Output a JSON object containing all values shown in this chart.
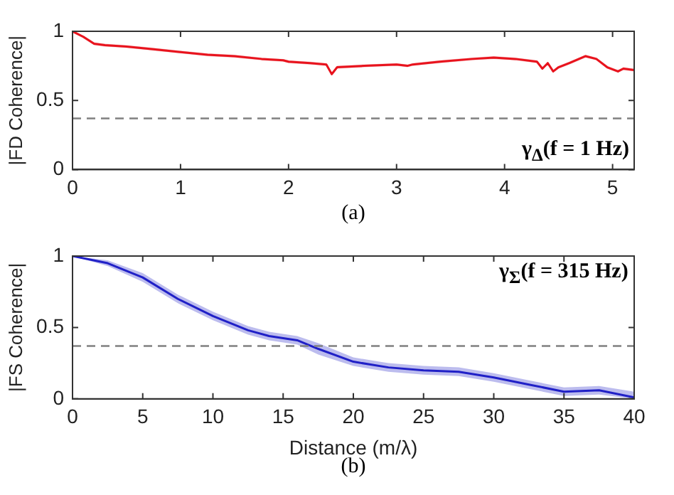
{
  "chart_data": [
    {
      "type": "line",
      "ylabel": "|FD Coherence|",
      "annotations": [
        "γ$_{Δ}$(f = 1 Hz)",
        "(a)"
      ],
      "xlim": [
        0,
        5.2
      ],
      "xticks": [
        0,
        1,
        2,
        3,
        4,
        5
      ],
      "ylim": [
        0,
        1
      ],
      "yticks": [
        0,
        0.5,
        1
      ],
      "grid": false,
      "legend": false,
      "marker": "none",
      "x": [
        0,
        0.1,
        0.2,
        0.3,
        0.5,
        0.75,
        1,
        1.25,
        1.5,
        1.75,
        1.95,
        2.0,
        2.2,
        2.35,
        2.4,
        2.45,
        2.7,
        3.0,
        3.1,
        3.15,
        3.4,
        3.7,
        3.9,
        4.1,
        4.3,
        4.35,
        4.4,
        4.45,
        4.5,
        4.6,
        4.75,
        4.85,
        4.95,
        5.05,
        5.1,
        5.2
      ],
      "series": [
        {
          "color": "#e8141e",
          "values": [
            1.0,
            0.96,
            0.91,
            0.9,
            0.89,
            0.87,
            0.85,
            0.83,
            0.82,
            0.8,
            0.79,
            0.78,
            0.77,
            0.76,
            0.69,
            0.74,
            0.75,
            0.76,
            0.75,
            0.76,
            0.78,
            0.8,
            0.81,
            0.8,
            0.78,
            0.73,
            0.77,
            0.71,
            0.74,
            0.77,
            0.82,
            0.8,
            0.74,
            0.71,
            0.73,
            0.72
          ],
          "lower": [
            0.99,
            0.95,
            0.9,
            0.89,
            0.88,
            0.86,
            0.84,
            0.82,
            0.81,
            0.79,
            0.78,
            0.77,
            0.76,
            0.75,
            0.68,
            0.73,
            0.74,
            0.75,
            0.74,
            0.75,
            0.77,
            0.79,
            0.8,
            0.79,
            0.77,
            0.72,
            0.76,
            0.7,
            0.73,
            0.76,
            0.81,
            0.79,
            0.73,
            0.7,
            0.72,
            0.71
          ],
          "upper": [
            1.0,
            0.97,
            0.92,
            0.91,
            0.9,
            0.88,
            0.86,
            0.84,
            0.83,
            0.81,
            0.8,
            0.79,
            0.78,
            0.77,
            0.7,
            0.75,
            0.76,
            0.77,
            0.76,
            0.77,
            0.79,
            0.81,
            0.82,
            0.81,
            0.79,
            0.74,
            0.78,
            0.72,
            0.75,
            0.78,
            0.83,
            0.81,
            0.75,
            0.72,
            0.74,
            0.73
          ]
        }
      ],
      "ref_lines": [
        {
          "axis": "y",
          "value": 0.37,
          "color": "#808080",
          "line_style": "dashed"
        }
      ]
    },
    {
      "type": "line",
      "xlabel": "Distance (m/λ)",
      "ylabel": "|FS Coherence|",
      "annotations": [
        "γ$_{Σ}$(f = 315 Hz)",
        "(b)"
      ],
      "xlim": [
        0,
        40
      ],
      "xticks": [
        0,
        5,
        10,
        15,
        20,
        25,
        30,
        35,
        40
      ],
      "ylim": [
        0,
        1
      ],
      "yticks": [
        0,
        0.5,
        1
      ],
      "grid": false,
      "legend": false,
      "marker": "none",
      "x": [
        0,
        2.5,
        5,
        7.5,
        10,
        12.5,
        14,
        16,
        17.5,
        20,
        22.5,
        25,
        27.5,
        30,
        32.5,
        35,
        37.5,
        40
      ],
      "series": [
        {
          "color": "#2020c8",
          "values": [
            1.0,
            0.95,
            0.85,
            0.7,
            0.58,
            0.48,
            0.44,
            0.41,
            0.35,
            0.26,
            0.22,
            0.2,
            0.19,
            0.15,
            0.1,
            0.05,
            0.06,
            0.01
          ],
          "lower": [
            1.0,
            0.93,
            0.82,
            0.67,
            0.55,
            0.45,
            0.41,
            0.38,
            0.31,
            0.23,
            0.19,
            0.17,
            0.16,
            0.12,
            0.07,
            0.02,
            0.03,
            0.0
          ],
          "upper": [
            1.0,
            0.97,
            0.88,
            0.73,
            0.61,
            0.51,
            0.47,
            0.44,
            0.39,
            0.29,
            0.25,
            0.23,
            0.22,
            0.18,
            0.13,
            0.08,
            0.09,
            0.05
          ]
        }
      ],
      "ref_lines": [
        {
          "axis": "y",
          "value": 0.37,
          "color": "#808080",
          "line_style": "dashed"
        }
      ]
    }
  ]
}
